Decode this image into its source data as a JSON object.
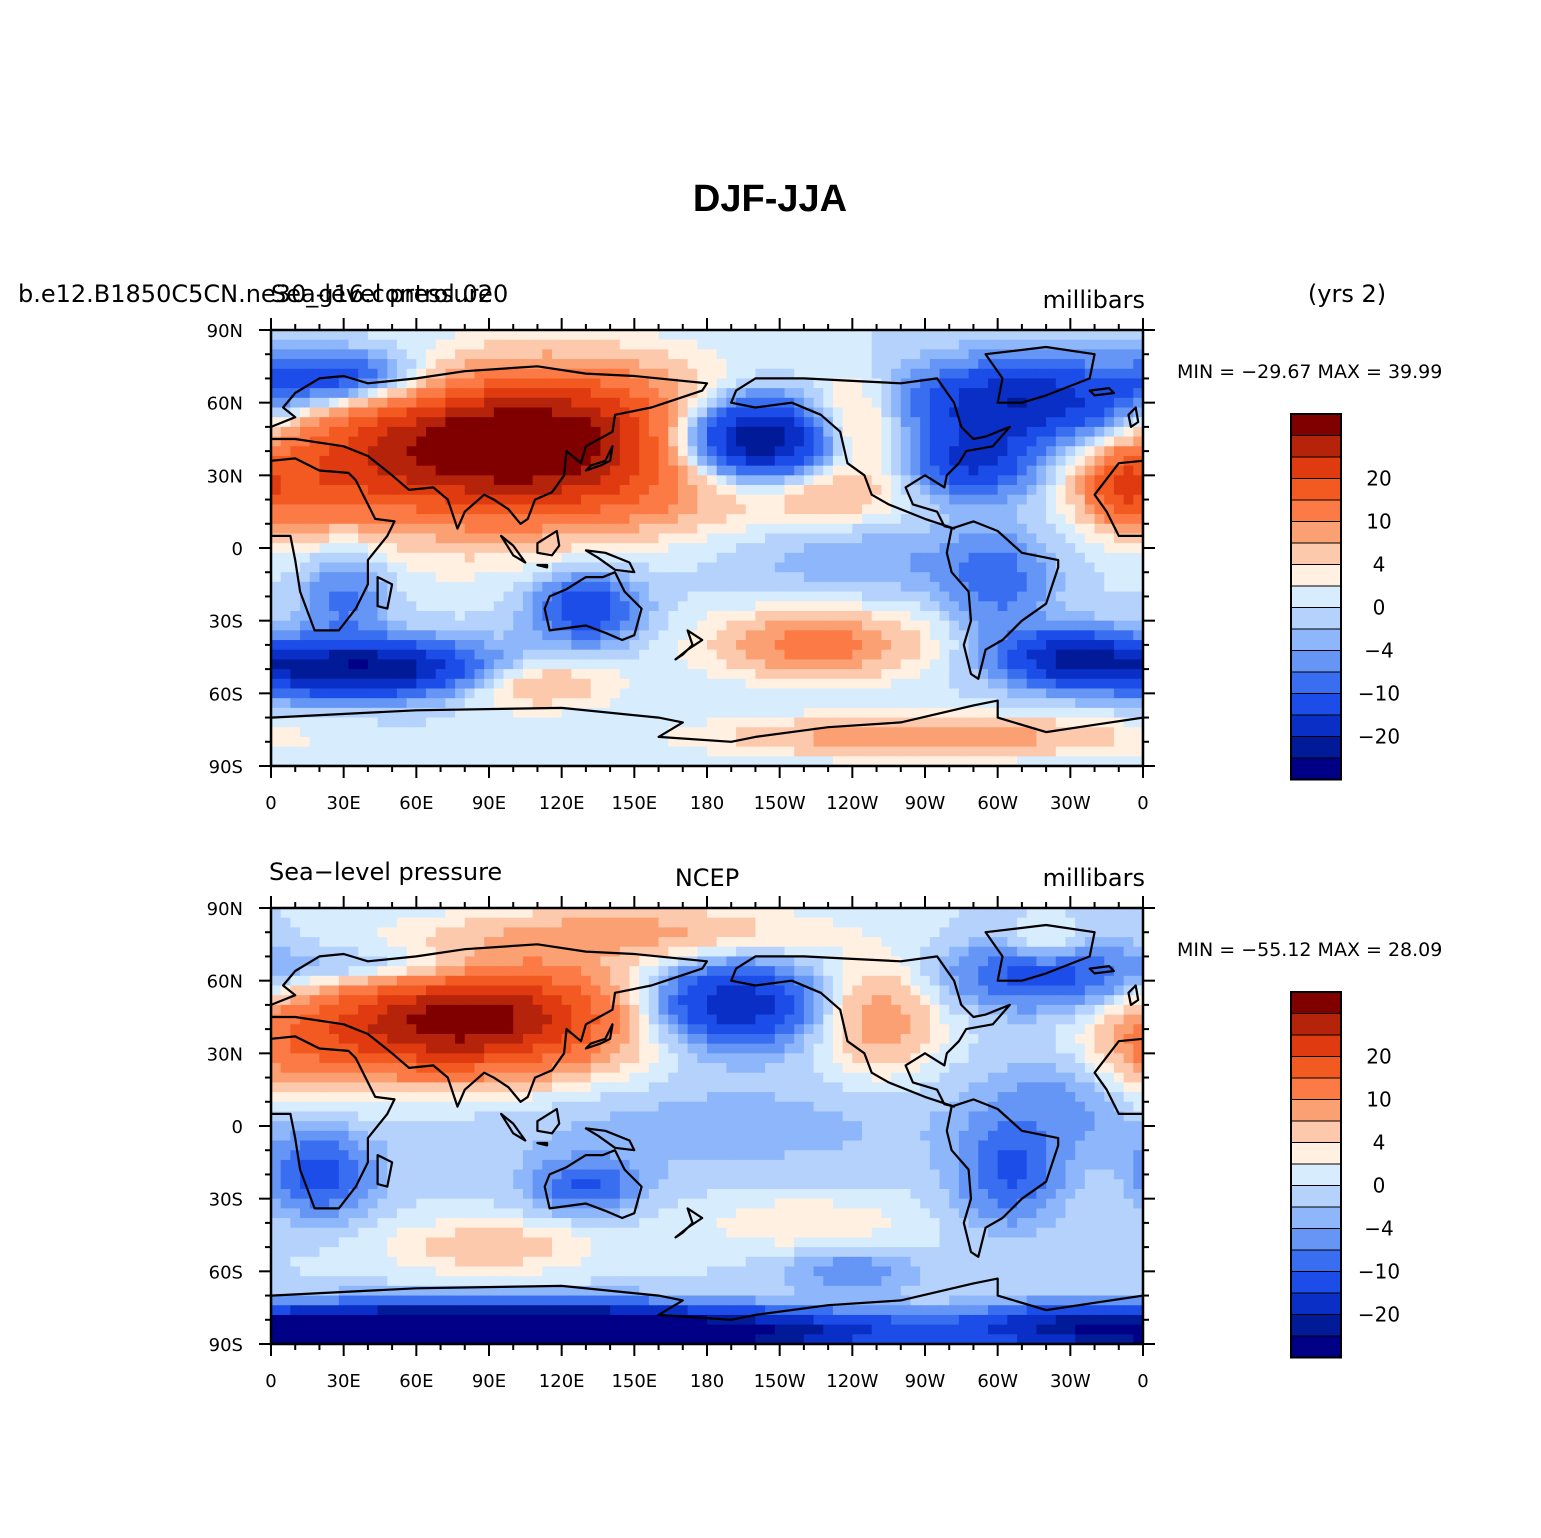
{
  "figure": {
    "title": "DJF-JJA",
    "years_label": "(yrs 2)"
  },
  "chart_data": [
    {
      "type": "heatmap",
      "left_label": "b.e12.B1850C5CN.ne30_g16.control.020",
      "center_label": "Sea-level pressure",
      "units": "millibars",
      "stats": "MIN = −29.67  MAX =   39.99",
      "min": -29.67,
      "max": 39.99,
      "xlim": [
        0,
        360
      ],
      "ylim": [
        -90,
        90
      ],
      "x_ticks": [
        "0",
        "30E",
        "60E",
        "90E",
        "120E",
        "150E",
        "180",
        "150W",
        "120W",
        "90W",
        "60W",
        "30W",
        "0"
      ],
      "y_ticks": [
        "90N",
        "60N",
        "30N",
        "0",
        "30S",
        "60S",
        "90S"
      ],
      "field": [
        {
          "lon": 120,
          "lat": 45,
          "value": 30,
          "sx": 45,
          "sy": 20
        },
        {
          "lon": 60,
          "lat": 40,
          "value": 18,
          "sx": 40,
          "sy": 18
        },
        {
          "lon": 10,
          "lat": 25,
          "value": 10,
          "sx": 25,
          "sy": 15
        },
        {
          "lon": 140,
          "lat": 20,
          "value": 4,
          "sx": 50,
          "sy": 12
        },
        {
          "lon": 200,
          "lat": 45,
          "value": -30,
          "sx": 25,
          "sy": 12
        },
        {
          "lon": 310,
          "lat": 60,
          "value": -20,
          "sx": 35,
          "sy": 12
        },
        {
          "lon": 290,
          "lat": 35,
          "value": -15,
          "sx": 18,
          "sy": 10
        },
        {
          "lon": 230,
          "lat": 22,
          "value": 6,
          "sx": 20,
          "sy": 8
        },
        {
          "lon": 240,
          "lat": 50,
          "value": 12,
          "sx": 15,
          "sy": 14
        },
        {
          "lon": 350,
          "lat": 25,
          "value": 12,
          "sx": 10,
          "sy": 10
        },
        {
          "lon": 30,
          "lat": 70,
          "value": -15,
          "sx": 25,
          "sy": 8
        },
        {
          "lon": 30,
          "lat": -20,
          "value": -8,
          "sx": 12,
          "sy": 15
        },
        {
          "lon": 130,
          "lat": -25,
          "value": -14,
          "sx": 15,
          "sy": 10
        },
        {
          "lon": 300,
          "lat": -15,
          "value": -8,
          "sx": 15,
          "sy": 15
        },
        {
          "lon": 40,
          "lat": -50,
          "value": -25,
          "sx": 40,
          "sy": 8
        },
        {
          "lon": 330,
          "lat": -45,
          "value": -18,
          "sx": 20,
          "sy": 8
        },
        {
          "lon": 225,
          "lat": -40,
          "value": 12,
          "sx": 30,
          "sy": 10
        },
        {
          "lon": 105,
          "lat": -55,
          "value": 10,
          "sx": 25,
          "sy": 8
        },
        {
          "lon": 270,
          "lat": -78,
          "value": 10,
          "sx": 60,
          "sy": 6
        },
        {
          "lon": 75,
          "lat": 0,
          "value": 2,
          "sx": 35,
          "sy": 15
        },
        {
          "lon": 250,
          "lat": -5,
          "value": -4,
          "sx": 40,
          "sy": 10
        }
      ]
    },
    {
      "type": "heatmap",
      "left_label": "Sea−level pressure",
      "center_label": "NCEP",
      "units": "millibars",
      "stats": "MIN = −55.12  MAX =   28.09",
      "min": -55.12,
      "max": 28.09,
      "xlim": [
        0,
        360
      ],
      "ylim": [
        -90,
        90
      ],
      "x_ticks": [
        "0",
        "30E",
        "60E",
        "90E",
        "120E",
        "150E",
        "180",
        "150W",
        "120W",
        "90W",
        "60W",
        "30W",
        "0"
      ],
      "y_ticks": [
        "90N",
        "60N",
        "30N",
        "0",
        "30S",
        "60S",
        "90S"
      ],
      "field": [
        {
          "lon": 95,
          "lat": 45,
          "value": 26,
          "sx": 40,
          "sy": 16
        },
        {
          "lon": 50,
          "lat": 40,
          "value": 14,
          "sx": 35,
          "sy": 15
        },
        {
          "lon": 5,
          "lat": 30,
          "value": 8,
          "sx": 20,
          "sy": 15
        },
        {
          "lon": 150,
          "lat": 80,
          "value": 8,
          "sx": 50,
          "sy": 8
        },
        {
          "lon": 190,
          "lat": 50,
          "value": -20,
          "sx": 25,
          "sy": 12
        },
        {
          "lon": 320,
          "lat": 62,
          "value": -12,
          "sx": 30,
          "sy": 10
        },
        {
          "lon": 250,
          "lat": 45,
          "value": 10,
          "sx": 18,
          "sy": 16
        },
        {
          "lon": 320,
          "lat": 75,
          "value": 6,
          "sx": 10,
          "sy": 6
        },
        {
          "lon": 50,
          "lat": 65,
          "value": -8,
          "sx": 30,
          "sy": 6
        },
        {
          "lon": 20,
          "lat": -20,
          "value": -12,
          "sx": 15,
          "sy": 12
        },
        {
          "lon": 130,
          "lat": -25,
          "value": -10,
          "sx": 15,
          "sy": 8
        },
        {
          "lon": 305,
          "lat": -20,
          "value": -10,
          "sx": 15,
          "sy": 15
        },
        {
          "lon": 90,
          "lat": -50,
          "value": 6,
          "sx": 30,
          "sy": 8
        },
        {
          "lon": 220,
          "lat": -40,
          "value": 4,
          "sx": 30,
          "sy": 8
        },
        {
          "lon": 240,
          "lat": -60,
          "value": -6,
          "sx": 20,
          "sy": 6
        },
        {
          "lon": 90,
          "lat": -85,
          "value": -55,
          "sx": 70,
          "sy": 7
        },
        {
          "lon": 220,
          "lat": -85,
          "value": -12,
          "sx": 60,
          "sy": 6
        },
        {
          "lon": 330,
          "lat": -82,
          "value": -10,
          "sx": 30,
          "sy": 6
        },
        {
          "lon": 180,
          "lat": 0,
          "value": -3,
          "sx": 80,
          "sy": 15
        },
        {
          "lon": 330,
          "lat": 10,
          "value": -5,
          "sx": 25,
          "sy": 15
        }
      ]
    }
  ],
  "colorbar": {
    "colors": [
      "#800000",
      "#b5230a",
      "#df3a10",
      "#f25a22",
      "#fb7a45",
      "#fba072",
      "#fdc9ad",
      "#fff0e1",
      "#d7ecfd",
      "#b4d2fc",
      "#8eb6fa",
      "#6595f5",
      "#3a6ef0",
      "#1d4de8",
      "#0a2fc6",
      "#001a98",
      "#000086"
    ],
    "levels": [
      30,
      25,
      20,
      15,
      10,
      7,
      4,
      2,
      0,
      -2,
      -4,
      -7,
      -10,
      -15,
      -20,
      -25,
      -30
    ],
    "labels": [
      {
        "text": "20",
        "boundary": 3
      },
      {
        "text": "10",
        "boundary": 5
      },
      {
        "text": "4",
        "boundary": 7
      },
      {
        "text": "0",
        "boundary": 9
      },
      {
        "text": "−4",
        "boundary": 11
      },
      {
        "text": "−10",
        "boundary": 13
      },
      {
        "text": "−20",
        "boundary": 15
      }
    ]
  }
}
